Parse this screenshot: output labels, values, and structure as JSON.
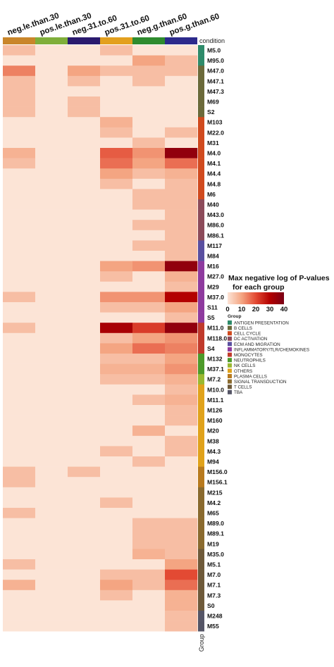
{
  "chart_data": {
    "type": "heatmap",
    "columns": [
      "neg.le.than.30",
      "pos.le.than.30",
      "neg.31.to.60",
      "pos.31.to.60",
      "neg.g.than.60",
      "pos.g.than.60"
    ],
    "column_condition_colors": [
      "#C9862A",
      "#7FAE3A",
      "#2A1A6E",
      "#E3A01E",
      "#2E8B2E",
      "#2C2A8C"
    ],
    "condition_label": "condition",
    "group_axis_label": "Group",
    "rows": [
      {
        "label": "M5.0",
        "group": "ANTIGEN PRESENTATION",
        "values": [
          6,
          0,
          0,
          6,
          0,
          0
        ]
      },
      {
        "label": "M95.0",
        "group": "ANTIGEN PRESENTATION",
        "values": [
          0,
          0,
          0,
          0,
          10,
          6
        ]
      },
      {
        "label": "M47.0",
        "group": "B CELLS",
        "values": [
          14,
          0,
          10,
          6,
          6,
          6
        ]
      },
      {
        "label": "M47.1",
        "group": "B CELLS",
        "values": [
          6,
          0,
          6,
          0,
          6,
          0
        ]
      },
      {
        "label": "M47.3",
        "group": "B CELLS",
        "values": [
          6,
          0,
          0,
          0,
          0,
          0
        ]
      },
      {
        "label": "M69",
        "group": "B CELLS",
        "values": [
          6,
          0,
          6,
          0,
          0,
          0
        ]
      },
      {
        "label": "S2",
        "group": "B CELLS",
        "values": [
          6,
          0,
          6,
          0,
          0,
          0
        ]
      },
      {
        "label": "M103",
        "group": "CELL CYCLE",
        "values": [
          0,
          0,
          0,
          8,
          0,
          0
        ]
      },
      {
        "label": "M22.0",
        "group": "CELL CYCLE",
        "values": [
          0,
          0,
          0,
          6,
          0,
          6
        ]
      },
      {
        "label": "M31",
        "group": "CELL CYCLE",
        "values": [
          0,
          0,
          0,
          0,
          6,
          0
        ]
      },
      {
        "label": "M4.0",
        "group": "CELL CYCLE",
        "values": [
          8,
          0,
          0,
          18,
          12,
          36
        ]
      },
      {
        "label": "M4.1",
        "group": "CELL CYCLE",
        "values": [
          6,
          0,
          0,
          16,
          10,
          16
        ]
      },
      {
        "label": "M4.4",
        "group": "CELL CYCLE",
        "values": [
          0,
          0,
          0,
          10,
          6,
          8
        ]
      },
      {
        "label": "M4.8",
        "group": "CELL CYCLE",
        "values": [
          0,
          0,
          0,
          6,
          0,
          6
        ]
      },
      {
        "label": "M6",
        "group": "CELL CYCLE",
        "values": [
          0,
          0,
          0,
          0,
          6,
          6
        ]
      },
      {
        "label": "M40",
        "group": "DC ACTIVATION",
        "values": [
          0,
          0,
          0,
          0,
          6,
          6
        ]
      },
      {
        "label": "M43.0",
        "group": "DC ACTIVATION",
        "values": [
          0,
          0,
          0,
          0,
          0,
          6
        ]
      },
      {
        "label": "M86.0",
        "group": "DC ACTIVATION",
        "values": [
          0,
          0,
          0,
          0,
          6,
          6
        ]
      },
      {
        "label": "M86.1",
        "group": "DC ACTIVATION",
        "values": [
          0,
          0,
          0,
          0,
          0,
          6
        ]
      },
      {
        "label": "M117",
        "group": "ECM AND MIGRATION",
        "values": [
          0,
          0,
          0,
          0,
          6,
          6
        ]
      },
      {
        "label": "M84",
        "group": "ECM AND MIGRATION",
        "values": [
          0,
          0,
          0,
          0,
          0,
          6
        ]
      },
      {
        "label": "M16",
        "group": "INFLAMMATORY/TLR/CHEMOKINES",
        "values": [
          0,
          0,
          0,
          10,
          12,
          36
        ]
      },
      {
        "label": "M27.0",
        "group": "INFLAMMATORY/TLR/CHEMOKINES",
        "values": [
          0,
          0,
          0,
          6,
          0,
          8
        ]
      },
      {
        "label": "M29",
        "group": "INFLAMMATORY/TLR/CHEMOKINES",
        "values": [
          0,
          0,
          0,
          0,
          0,
          6
        ]
      },
      {
        "label": "M37.0",
        "group": "INFLAMMATORY/TLR/CHEMOKINES",
        "values": [
          6,
          0,
          0,
          12,
          12,
          30
        ]
      },
      {
        "label": "S11",
        "group": "INFLAMMATORY/TLR/CHEMOKINES",
        "values": [
          0,
          0,
          0,
          6,
          6,
          10
        ]
      },
      {
        "label": "S5",
        "group": "INFLAMMATORY/TLR/CHEMOKINES",
        "values": [
          0,
          0,
          0,
          0,
          0,
          6
        ]
      },
      {
        "label": "M11.0",
        "group": "MONOCYTES",
        "values": [
          6,
          0,
          0,
          32,
          22,
          36
        ]
      },
      {
        "label": "M118.0",
        "group": "MONOCYTES",
        "values": [
          0,
          0,
          0,
          6,
          10,
          12
        ]
      },
      {
        "label": "S4",
        "group": "MONOCYTES",
        "values": [
          0,
          0,
          0,
          10,
          16,
          14
        ]
      },
      {
        "label": "M132",
        "group": "NEUTROPHILS",
        "values": [
          0,
          0,
          0,
          6,
          6,
          10
        ]
      },
      {
        "label": "M37.1",
        "group": "NEUTROPHILS",
        "values": [
          0,
          0,
          0,
          8,
          8,
          12
        ]
      },
      {
        "label": "M7.2",
        "group": "NK CELLS",
        "values": [
          0,
          0,
          0,
          6,
          6,
          8
        ]
      },
      {
        "label": "M10.0",
        "group": "OTHERS",
        "values": [
          0,
          0,
          0,
          0,
          0,
          6
        ]
      },
      {
        "label": "M11.1",
        "group": "OTHERS",
        "values": [
          0,
          0,
          0,
          0,
          6,
          8
        ]
      },
      {
        "label": "M126",
        "group": "OTHERS",
        "values": [
          0,
          0,
          0,
          0,
          0,
          6
        ]
      },
      {
        "label": "M160",
        "group": "OTHERS",
        "values": [
          0,
          0,
          0,
          0,
          0,
          6
        ]
      },
      {
        "label": "M20",
        "group": "OTHERS",
        "values": [
          0,
          0,
          0,
          0,
          8,
          0
        ]
      },
      {
        "label": "M38",
        "group": "OTHERS",
        "values": [
          0,
          0,
          0,
          0,
          0,
          6
        ]
      },
      {
        "label": "M4.3",
        "group": "OTHERS",
        "values": [
          0,
          0,
          0,
          6,
          0,
          6
        ]
      },
      {
        "label": "M94",
        "group": "OTHERS",
        "values": [
          0,
          0,
          0,
          0,
          6,
          0
        ]
      },
      {
        "label": "M156.0",
        "group": "PLASMA CELLS",
        "values": [
          6,
          0,
          6,
          0,
          0,
          0
        ]
      },
      {
        "label": "M156.1",
        "group": "PLASMA CELLS",
        "values": [
          6,
          0,
          0,
          0,
          0,
          0
        ]
      },
      {
        "label": "M215",
        "group": "SIGNAL TRANSDUCTION",
        "values": [
          0,
          0,
          0,
          0,
          0,
          0
        ]
      },
      {
        "label": "M4.2",
        "group": "SIGNAL TRANSDUCTION",
        "values": [
          0,
          0,
          0,
          6,
          0,
          0
        ]
      },
      {
        "label": "M65",
        "group": "SIGNAL TRANSDUCTION",
        "values": [
          6,
          0,
          0,
          0,
          0,
          0
        ]
      },
      {
        "label": "M89.0",
        "group": "SIGNAL TRANSDUCTION",
        "values": [
          0,
          0,
          0,
          0,
          6,
          6
        ]
      },
      {
        "label": "M89.1",
        "group": "SIGNAL TRANSDUCTION",
        "values": [
          0,
          0,
          0,
          0,
          6,
          6
        ]
      },
      {
        "label": "M19",
        "group": "SIGNAL TRANSDUCTION",
        "values": [
          0,
          0,
          0,
          0,
          6,
          6
        ]
      },
      {
        "label": "M35.0",
        "group": "T CELLS",
        "values": [
          0,
          0,
          0,
          0,
          8,
          6
        ]
      },
      {
        "label": "M5.1",
        "group": "T CELLS",
        "values": [
          6,
          0,
          0,
          0,
          0,
          10
        ]
      },
      {
        "label": "M7.0",
        "group": "T CELLS",
        "values": [
          0,
          0,
          0,
          6,
          6,
          20
        ]
      },
      {
        "label": "M7.1",
        "group": "T CELLS",
        "values": [
          8,
          0,
          0,
          10,
          6,
          16
        ]
      },
      {
        "label": "M7.3",
        "group": "T CELLS",
        "values": [
          0,
          0,
          0,
          6,
          0,
          8
        ]
      },
      {
        "label": "S0",
        "group": "T CELLS",
        "values": [
          0,
          0,
          0,
          0,
          0,
          8
        ]
      },
      {
        "label": "M248",
        "group": "TBA",
        "values": [
          0,
          0,
          0,
          0,
          0,
          6
        ]
      },
      {
        "label": "M55",
        "group": "TBA",
        "values": [
          0,
          0,
          0,
          0,
          0,
          6
        ]
      }
    ],
    "colorbar": {
      "title": "Max negative log of P-values for each group",
      "range": [
        0,
        40
      ],
      "ticks": [
        0,
        10,
        20,
        30,
        40
      ],
      "colors": [
        "#FCE4D6",
        "#F4A582",
        "#E34A33",
        "#B30000",
        "#7A0016"
      ]
    },
    "group_legend": {
      "title": "Group",
      "entries": [
        {
          "name": "ANTIGEN PRESENTATION",
          "color": "#2E8B6A"
        },
        {
          "name": "B CELLS",
          "color": "#6B6A3A"
        },
        {
          "name": "CELL CYCLE",
          "color": "#D04A1E"
        },
        {
          "name": "DC ACTIVATION",
          "color": "#8C4B5A"
        },
        {
          "name": "ECM AND MIGRATION",
          "color": "#5A4FA0"
        },
        {
          "name": "INFLAMMATORY/TLR/CHEMOKINES",
          "color": "#8E3A9E"
        },
        {
          "name": "MONOCYTES",
          "color": "#C03A2B"
        },
        {
          "name": "NEUTROPHILS",
          "color": "#4C9A2A"
        },
        {
          "name": "NK CELLS",
          "color": "#9AB831"
        },
        {
          "name": "OTHERS",
          "color": "#E0A21B"
        },
        {
          "name": "PLASMA CELLS",
          "color": "#B87A1E"
        },
        {
          "name": "SIGNAL TRANSDUCTION",
          "color": "#8A6A2E"
        },
        {
          "name": "T CELLS",
          "color": "#6E5A3A"
        },
        {
          "name": "TBA",
          "color": "#555566"
        }
      ]
    }
  }
}
